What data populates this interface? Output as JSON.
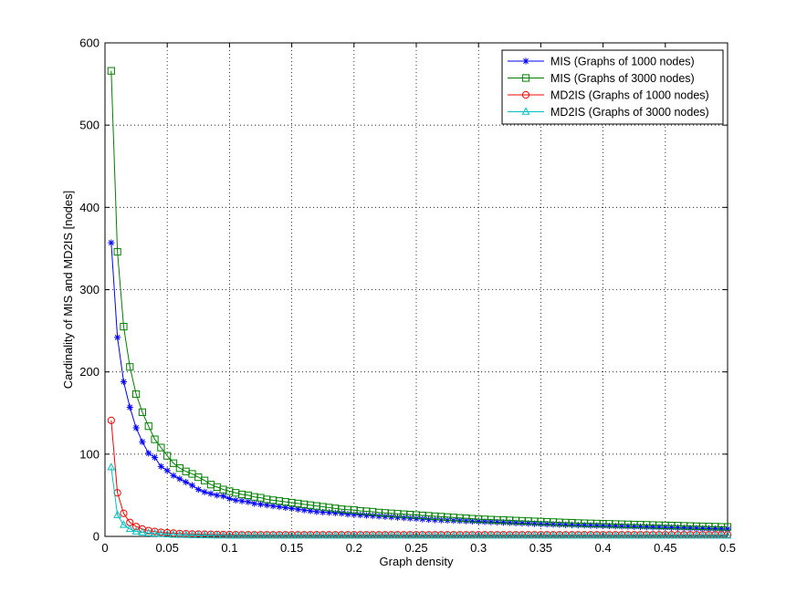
{
  "chart_data": {
    "type": "line",
    "xlabel": "Graph density",
    "ylabel": "Cardinality of  MIS and MD2IS [nodes]",
    "xlim": [
      0,
      0.5
    ],
    "ylim": [
      0,
      600
    ],
    "xticks": [
      0,
      0.05,
      0.1,
      0.15,
      0.2,
      0.25,
      0.3,
      0.35,
      0.4,
      0.45,
      0.5
    ],
    "xtick_labels": [
      "0",
      "0.05",
      "0.1",
      "0.15",
      "0.2",
      "0.25",
      "0.3",
      "0.35",
      "0.4",
      "0.45",
      "0.5"
    ],
    "yticks": [
      0,
      100,
      200,
      300,
      400,
      500,
      600
    ],
    "ytick_labels": [
      "0",
      "100",
      "200",
      "300",
      "400",
      "500",
      "600"
    ],
    "grid": true,
    "legend_position": "top-right",
    "series": [
      {
        "name": "MIS (Graphs of 1000 nodes)",
        "color": "#0000ff",
        "marker": "asterisk",
        "x": [
          0.005,
          0.01,
          0.015,
          0.02,
          0.025,
          0.03,
          0.035,
          0.04,
          0.045,
          0.05,
          0.055,
          0.06,
          0.065,
          0.07,
          0.075,
          0.08,
          0.085,
          0.09,
          0.095,
          0.1,
          0.105,
          0.11,
          0.115,
          0.12,
          0.125,
          0.13,
          0.135,
          0.14,
          0.145,
          0.15,
          0.155,
          0.16,
          0.165,
          0.17,
          0.175,
          0.18,
          0.185,
          0.19,
          0.195,
          0.2,
          0.205,
          0.21,
          0.215,
          0.22,
          0.225,
          0.23,
          0.235,
          0.24,
          0.245,
          0.25,
          0.255,
          0.26,
          0.265,
          0.27,
          0.275,
          0.28,
          0.285,
          0.29,
          0.295,
          0.3,
          0.305,
          0.31,
          0.315,
          0.32,
          0.325,
          0.33,
          0.335,
          0.34,
          0.345,
          0.35,
          0.355,
          0.36,
          0.365,
          0.37,
          0.375,
          0.38,
          0.385,
          0.39,
          0.395,
          0.4,
          0.405,
          0.41,
          0.415,
          0.42,
          0.425,
          0.43,
          0.435,
          0.44,
          0.445,
          0.45,
          0.455,
          0.46,
          0.465,
          0.47,
          0.475,
          0.48,
          0.485,
          0.49,
          0.495,
          0.5
        ],
        "y": [
          357,
          242,
          188,
          157,
          132,
          115,
          101,
          96,
          85,
          80,
          74,
          70,
          66,
          62,
          57,
          54,
          52,
          50,
          49,
          46,
          44,
          43,
          42,
          40,
          39,
          38,
          37,
          36,
          35,
          34,
          33,
          32,
          31,
          30,
          29.5,
          29,
          28.5,
          28,
          27,
          26.5,
          26,
          25.5,
          25,
          24.5,
          24,
          23.5,
          23,
          22.5,
          22,
          21.5,
          21,
          20.5,
          20,
          19.8,
          19.5,
          19.2,
          19,
          18.7,
          18.4,
          18.1,
          17.8,
          17.5,
          17.2,
          16.9,
          16.6,
          16.3,
          16,
          15.7,
          15.4,
          15.1,
          14.8,
          14.5,
          14.3,
          14.1,
          13.9,
          13.7,
          13.5,
          13.3,
          13.1,
          12.9,
          12.7,
          12.5,
          12.3,
          12.1,
          11.9,
          11.7,
          11.5,
          11.3,
          11.1,
          10.9,
          10.7,
          10.5,
          10.3,
          10.1,
          9.9,
          9.7,
          9.5,
          9.3,
          9.1,
          9
        ]
      },
      {
        "name": "MIS (Graphs of 3000 nodes)",
        "color": "#008000",
        "marker": "square",
        "x": [
          0.005,
          0.01,
          0.015,
          0.02,
          0.025,
          0.03,
          0.035,
          0.04,
          0.045,
          0.05,
          0.055,
          0.06,
          0.065,
          0.07,
          0.075,
          0.08,
          0.085,
          0.09,
          0.095,
          0.1,
          0.105,
          0.11,
          0.115,
          0.12,
          0.125,
          0.13,
          0.135,
          0.14,
          0.145,
          0.15,
          0.155,
          0.16,
          0.165,
          0.17,
          0.175,
          0.18,
          0.185,
          0.19,
          0.195,
          0.2,
          0.205,
          0.21,
          0.215,
          0.22,
          0.225,
          0.23,
          0.235,
          0.24,
          0.245,
          0.25,
          0.255,
          0.26,
          0.265,
          0.27,
          0.275,
          0.28,
          0.285,
          0.29,
          0.295,
          0.3,
          0.305,
          0.31,
          0.315,
          0.32,
          0.325,
          0.33,
          0.335,
          0.34,
          0.345,
          0.35,
          0.355,
          0.36,
          0.365,
          0.37,
          0.375,
          0.38,
          0.385,
          0.39,
          0.395,
          0.4,
          0.405,
          0.41,
          0.415,
          0.42,
          0.425,
          0.43,
          0.435,
          0.44,
          0.445,
          0.45,
          0.455,
          0.46,
          0.465,
          0.47,
          0.475,
          0.48,
          0.485,
          0.49,
          0.495,
          0.5
        ],
        "y": [
          566,
          346,
          255,
          206,
          173,
          151,
          134,
          118,
          108,
          98,
          89,
          83,
          79,
          76,
          72,
          68,
          63,
          60,
          57,
          55,
          53,
          51,
          50,
          48,
          47,
          45,
          44,
          43,
          42,
          41,
          40,
          39,
          38,
          37,
          36,
          35,
          34,
          33,
          32.5,
          32,
          31,
          30.5,
          30,
          29,
          28.5,
          28,
          27.5,
          27,
          26.5,
          26,
          25.5,
          25,
          24.5,
          24,
          23.5,
          23,
          22.5,
          22,
          21.5,
          21,
          20.7,
          20.4,
          20.1,
          19.8,
          19.5,
          19.2,
          18.9,
          18.6,
          18.3,
          18,
          17.7,
          17.4,
          17.1,
          16.8,
          16.5,
          16.2,
          16,
          15.8,
          15.6,
          15.4,
          15.2,
          15,
          14.8,
          14.6,
          14.4,
          14.2,
          14,
          13.8,
          13.6,
          13.4,
          13.2,
          13,
          12.8,
          12.6,
          12.4,
          12.2,
          12,
          11.8,
          11.6,
          11.5
        ]
      },
      {
        "name": "MD2IS (Graphs of 1000 nodes)",
        "color": "#ff0000",
        "marker": "circle",
        "x": [
          0.005,
          0.01,
          0.015,
          0.02,
          0.025,
          0.03,
          0.035,
          0.04,
          0.045,
          0.05,
          0.055,
          0.06,
          0.065,
          0.07,
          0.075,
          0.08,
          0.085,
          0.09,
          0.095,
          0.1,
          0.105,
          0.11,
          0.115,
          0.12,
          0.125,
          0.13,
          0.135,
          0.14,
          0.145,
          0.15,
          0.155,
          0.16,
          0.165,
          0.17,
          0.175,
          0.18,
          0.185,
          0.19,
          0.195,
          0.2,
          0.205,
          0.21,
          0.215,
          0.22,
          0.225,
          0.23,
          0.235,
          0.24,
          0.245,
          0.25,
          0.255,
          0.26,
          0.265,
          0.27,
          0.275,
          0.28,
          0.285,
          0.29,
          0.295,
          0.3,
          0.305,
          0.31,
          0.315,
          0.32,
          0.325,
          0.33,
          0.335,
          0.34,
          0.345,
          0.35,
          0.355,
          0.36,
          0.365,
          0.37,
          0.375,
          0.38,
          0.385,
          0.39,
          0.395,
          0.4,
          0.405,
          0.41,
          0.415,
          0.42,
          0.425,
          0.43,
          0.435,
          0.44,
          0.445,
          0.45,
          0.455,
          0.46,
          0.465,
          0.47,
          0.475,
          0.48,
          0.485,
          0.49,
          0.495,
          0.5
        ],
        "y": [
          141,
          53,
          28,
          17,
          12,
          9,
          7,
          6,
          5,
          4.5,
          4,
          3.5,
          3.2,
          3,
          2.8,
          2.6,
          2.5,
          2.4,
          2.3,
          2.2,
          2.1,
          2,
          2,
          2,
          2,
          2,
          2,
          2,
          2,
          2,
          2,
          2,
          2,
          2,
          2,
          2,
          2,
          2,
          2,
          2,
          2,
          2,
          2,
          2,
          2,
          2,
          2,
          2,
          2,
          2,
          2,
          2,
          2,
          2,
          2,
          2,
          2,
          2,
          2,
          2,
          2,
          2,
          2,
          2,
          2,
          2,
          2,
          2,
          2,
          2,
          2,
          2,
          2,
          2,
          2,
          2,
          2,
          2,
          2,
          2,
          2,
          2,
          2,
          2,
          2,
          2,
          2,
          2,
          2,
          2,
          2,
          2,
          2,
          2,
          2,
          2,
          2,
          2,
          2,
          2
        ]
      },
      {
        "name": "MD2IS (Graphs of 3000 nodes)",
        "color": "#00bfbf",
        "marker": "triangle",
        "x": [
          0.005,
          0.01,
          0.015,
          0.02,
          0.025,
          0.03,
          0.035,
          0.04,
          0.045,
          0.05,
          0.055,
          0.06,
          0.065,
          0.07,
          0.075,
          0.08,
          0.085,
          0.09,
          0.095,
          0.1,
          0.105,
          0.11,
          0.115,
          0.12,
          0.125,
          0.13,
          0.135,
          0.14,
          0.145,
          0.15,
          0.155,
          0.16,
          0.165,
          0.17,
          0.175,
          0.18,
          0.185,
          0.19,
          0.195,
          0.2,
          0.205,
          0.21,
          0.215,
          0.22,
          0.225,
          0.23,
          0.235,
          0.24,
          0.245,
          0.25,
          0.255,
          0.26,
          0.265,
          0.27,
          0.275,
          0.28,
          0.285,
          0.29,
          0.295,
          0.3,
          0.305,
          0.31,
          0.315,
          0.32,
          0.325,
          0.33,
          0.335,
          0.34,
          0.345,
          0.35,
          0.355,
          0.36,
          0.365,
          0.37,
          0.375,
          0.38,
          0.385,
          0.39,
          0.395,
          0.4,
          0.405,
          0.41,
          0.415,
          0.42,
          0.425,
          0.43,
          0.435,
          0.44,
          0.445,
          0.45,
          0.455,
          0.46,
          0.465,
          0.47,
          0.475,
          0.48,
          0.485,
          0.49,
          0.495,
          0.5
        ],
        "y": [
          84,
          26,
          14,
          9,
          6,
          5,
          4,
          3.5,
          3,
          2.5,
          2.2,
          2,
          1.8,
          1.6,
          1.5,
          1.4,
          1.3,
          1.2,
          1.1,
          1,
          1,
          1,
          1,
          1,
          1,
          1,
          1,
          1,
          1,
          1,
          1,
          1,
          1,
          1,
          1,
          1,
          1,
          1,
          1,
          1,
          1,
          1,
          1,
          1,
          1,
          1,
          1,
          1,
          1,
          1,
          1,
          1,
          1,
          1,
          1,
          1,
          1,
          1,
          1,
          1,
          1,
          1,
          1,
          1,
          1,
          1,
          1,
          1,
          1,
          1,
          1,
          1,
          1,
          1,
          1,
          1,
          1,
          1,
          1,
          1,
          1,
          1,
          1,
          1,
          1,
          1,
          1,
          1,
          1,
          1,
          1,
          1,
          1,
          1,
          1,
          1,
          1,
          1,
          1,
          1
        ]
      }
    ]
  }
}
